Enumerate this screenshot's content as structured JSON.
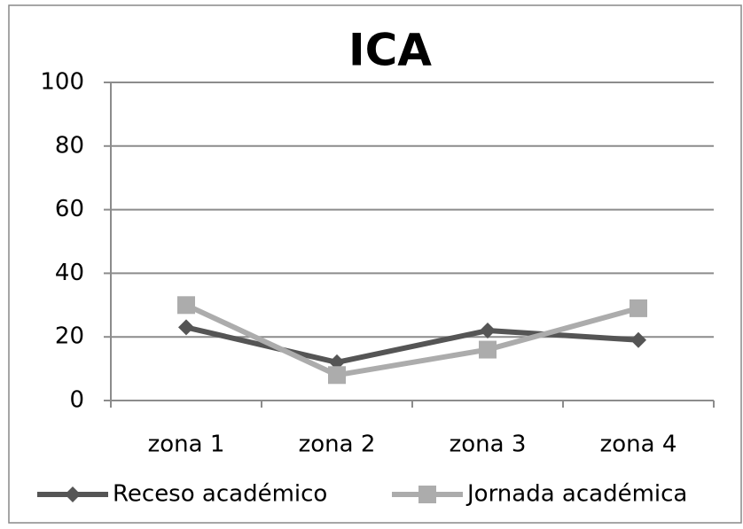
{
  "chart_data": {
    "type": "line",
    "title": "ICA",
    "categories": [
      "zona 1",
      "zona 2",
      "zona 3",
      "zona 4"
    ],
    "series": [
      {
        "name": "Receso académico",
        "color": "#555555",
        "marker": "diamond",
        "values": [
          23,
          12,
          22,
          19
        ]
      },
      {
        "name": "Jornada académica",
        "color": "#acacac",
        "marker": "square",
        "values": [
          30,
          8,
          16,
          29
        ]
      }
    ],
    "ylim": [
      0,
      100
    ],
    "yticks": [
      0,
      20,
      40,
      60,
      80,
      100
    ],
    "grid": true,
    "legend": "bottom"
  }
}
